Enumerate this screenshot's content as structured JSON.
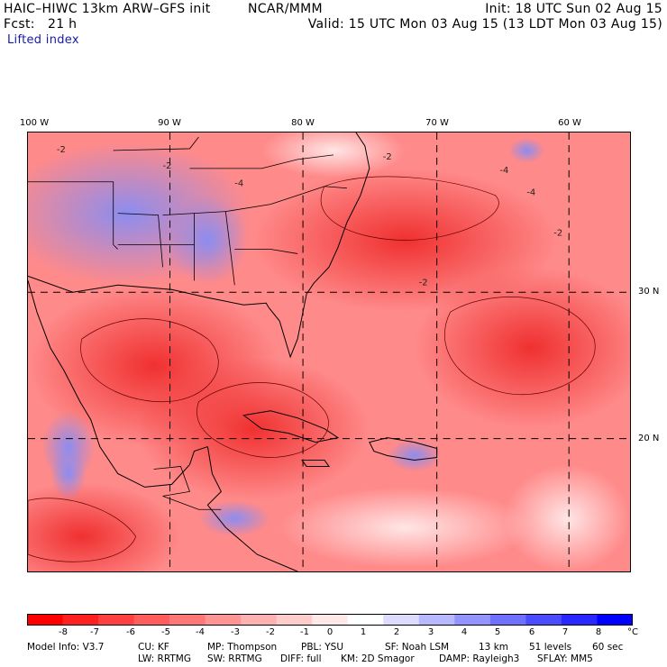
{
  "header": {
    "title": "HAIC–HIWC 13km ARW–GFS init",
    "org": "NCAR/MMM",
    "init": "Init: 18 UTC Sun 02 Aug 15",
    "fcst": "Fcst:   21 h",
    "valid": "Valid: 15 UTC Mon 03 Aug 15 (13 LDT Mon 03 Aug 15)",
    "field": "Lifted index"
  },
  "map": {
    "lon_labels": [
      "100 W",
      "90 W",
      "80 W",
      "70 W",
      "60 W"
    ],
    "lat_labels": [
      "30 N",
      "20 N"
    ],
    "contour_labels": [
      "-2",
      "-2",
      "-2",
      "-4",
      "-4",
      "-4",
      "-2",
      "-2"
    ]
  },
  "colorbar": {
    "ticks": [
      "-8",
      "-7",
      "-6",
      "-5",
      "-4",
      "-3",
      "-2",
      "-1",
      "0",
      "1",
      "2",
      "3",
      "4",
      "5",
      "6",
      "7",
      "8"
    ],
    "unit": "°C",
    "colors": [
      "#ff0000",
      "#ff2020",
      "#ff4040",
      "#ff5c5c",
      "#ff7878",
      "#ff9494",
      "#ffb0b0",
      "#ffcccc",
      "#ffe8e8",
      "#ffffff",
      "#dcdcff",
      "#b8b8ff",
      "#9494ff",
      "#7070ff",
      "#4c4cff",
      "#2828ff",
      "#0000ff"
    ]
  },
  "model_info": {
    "line1": [
      "Model Info: V3.7",
      "CU: KF",
      "MP: Thompson",
      "PBL: YSU",
      "SF: Noah LSM",
      "13 km",
      "51 levels",
      "60 sec"
    ],
    "line2": [
      "LW: RRTMG",
      "SW: RRTMG",
      "DIFF: full",
      "KM: 2D Smagor",
      "DAMP: Rayleigh3",
      "SFLAY: MM5"
    ]
  }
}
